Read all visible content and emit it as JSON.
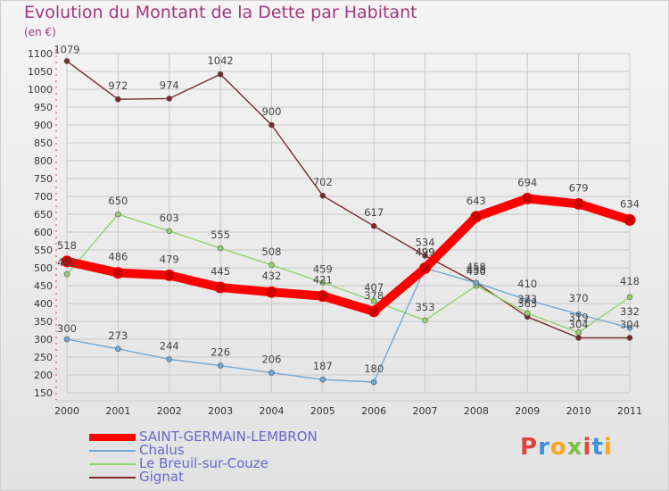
{
  "header": {
    "title": "Evolution du Montant de la Dette par Habitant",
    "unit": "(en €)"
  },
  "logo": {
    "text": "Proxiti"
  },
  "chart_data": {
    "type": "line",
    "title": "Evolution du Montant de la Dette par Habitant",
    "ylabel": "(en €)",
    "xlabel": "",
    "ylim": [
      150,
      1100
    ],
    "yticks": [
      150,
      200,
      250,
      300,
      350,
      400,
      450,
      500,
      550,
      600,
      650,
      700,
      750,
      800,
      850,
      900,
      950,
      1000,
      1050,
      1100
    ],
    "categories": [
      "2000",
      "2001",
      "2002",
      "2003",
      "2004",
      "2005",
      "2006",
      "2007",
      "2008",
      "2009",
      "2010",
      "2011"
    ],
    "legend_position": "bottom-left",
    "series": [
      {
        "name": "SAINT-GERMAIN-LEMBRON",
        "color": "#ff0000",
        "values": [
          518,
          486,
          479,
          445,
          432,
          421,
          378,
          499,
          643,
          694,
          679,
          634
        ]
      },
      {
        "name": "Chalus",
        "color": "#6fa8d6",
        "values": [
          300,
          273,
          244,
          226,
          206,
          187,
          180,
          499,
          458,
          410,
          370,
          332
        ]
      },
      {
        "name": "Le Breuil-sur-Couze",
        "color": "#8fd36a",
        "values": [
          482,
          650,
          603,
          555,
          508,
          459,
          407,
          353,
          450,
          373,
          319,
          418
        ]
      },
      {
        "name": "Gignat",
        "color": "#7a2a2a",
        "values": [
          1079,
          972,
          974,
          1042,
          900,
          702,
          617,
          534,
          458,
          363,
          304,
          304
        ]
      }
    ]
  }
}
